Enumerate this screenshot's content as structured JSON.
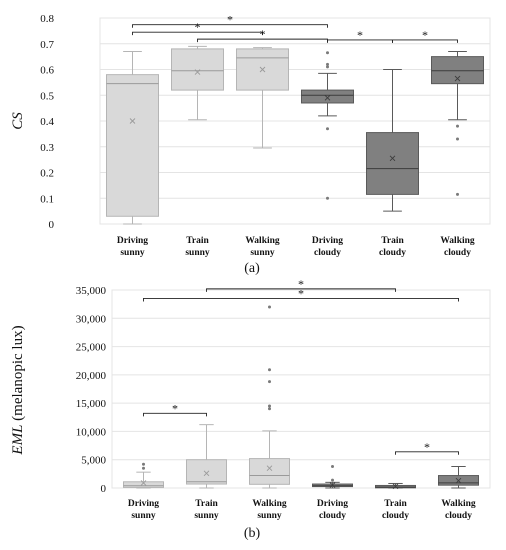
{
  "chart_data": [
    {
      "type": "box",
      "panel_label": "(a)",
      "ylabel": "CS",
      "ylim": [
        0,
        0.8
      ],
      "yticks": [
        "0",
        "0.1",
        "0.2",
        "0.3",
        "0.4",
        "0.5",
        "0.6",
        "0.7",
        "0.8"
      ],
      "grid": true,
      "categories": [
        [
          "Driving",
          "sunny"
        ],
        [
          "Train",
          "sunny"
        ],
        [
          "Walking",
          "sunny"
        ],
        [
          "Driving",
          "cloudy"
        ],
        [
          "Train",
          "cloudy"
        ],
        [
          "Walking",
          "cloudy"
        ]
      ],
      "box_colors": [
        "#d9d9d9",
        "#d9d9d9",
        "#d9d9d9",
        "#808080",
        "#808080",
        "#808080"
      ],
      "boxes": [
        {
          "whisker_low": 0.0,
          "q1": 0.03,
          "median": 0.545,
          "q3": 0.58,
          "whisker_high": 0.67,
          "mean": 0.4,
          "outliers": []
        },
        {
          "whisker_low": 0.405,
          "q1": 0.52,
          "median": 0.595,
          "q3": 0.68,
          "whisker_high": 0.69,
          "mean": 0.59,
          "outliers": []
        },
        {
          "whisker_low": 0.295,
          "q1": 0.52,
          "median": 0.645,
          "q3": 0.68,
          "whisker_high": 0.685,
          "mean": 0.6,
          "outliers": []
        },
        {
          "whisker_low": 0.42,
          "q1": 0.47,
          "median": 0.5,
          "q3": 0.52,
          "whisker_high": 0.585,
          "mean": 0.49,
          "outliers": [
            0.1,
            0.37,
            0.61,
            0.62,
            0.665
          ]
        },
        {
          "whisker_low": 0.05,
          "q1": 0.115,
          "median": 0.215,
          "q3": 0.355,
          "whisker_high": 0.6,
          "mean": 0.255,
          "outliers": []
        },
        {
          "whisker_low": 0.405,
          "q1": 0.545,
          "median": 0.595,
          "q3": 0.65,
          "whisker_high": 0.67,
          "mean": 0.565,
          "outliers": [
            0.115,
            0.33,
            0.38
          ]
        }
      ],
      "significance": [
        {
          "from": 0,
          "to": 3,
          "y": 0.774,
          "label": "*"
        },
        {
          "from": 0,
          "to": 2,
          "y": 0.745,
          "label": "*"
        },
        {
          "from": 1,
          "to": 3,
          "y": 0.718,
          "label": "*"
        },
        {
          "from": 3,
          "to": 4,
          "y": 0.715,
          "label": "*"
        },
        {
          "from": 4,
          "to": 5,
          "y": 0.715,
          "label": "*"
        }
      ]
    },
    {
      "type": "box",
      "panel_label": "(b)",
      "ylabel": "EML (melanopic lux)",
      "ylabel_italic_part": "EML",
      "ylabel_rest": " (melanopic lux)",
      "ylim": [
        0,
        35000
      ],
      "yticks": [
        "0",
        "5,000",
        "10,000",
        "15,000",
        "20,000",
        "25,000",
        "30,000",
        "35,000"
      ],
      "grid": true,
      "categories": [
        [
          "Driving",
          "sunny"
        ],
        [
          "Train",
          "sunny"
        ],
        [
          "Walking",
          "sunny"
        ],
        [
          "Driving",
          "cloudy"
        ],
        [
          "Train",
          "cloudy"
        ],
        [
          "Walking",
          "cloudy"
        ]
      ],
      "box_colors": [
        "#d9d9d9",
        "#d9d9d9",
        "#d9d9d9",
        "#808080",
        "#808080",
        "#808080"
      ],
      "boxes": [
        {
          "whisker_low": 0,
          "q1": 100,
          "median": 400,
          "q3": 1100,
          "whisker_high": 2800,
          "mean": 900,
          "outliers": [
            3500,
            4200
          ]
        },
        {
          "whisker_low": 0,
          "q1": 700,
          "median": 1100,
          "q3": 5000,
          "whisker_high": 11200,
          "mean": 2600,
          "outliers": []
        },
        {
          "whisker_low": 0,
          "q1": 650,
          "median": 2200,
          "q3": 5200,
          "whisker_high": 10100,
          "mean": 3500,
          "outliers": [
            14000,
            14500,
            18800,
            20900,
            32000
          ]
        },
        {
          "whisker_low": 0,
          "q1": 250,
          "median": 400,
          "q3": 700,
          "whisker_high": 1000,
          "mean": 550,
          "outliers": [
            1400,
            3800
          ]
        },
        {
          "whisker_low": 0,
          "q1": 30,
          "median": 150,
          "q3": 450,
          "whisker_high": 800,
          "mean": 300,
          "outliers": []
        },
        {
          "whisker_low": 0,
          "q1": 500,
          "median": 900,
          "q3": 2200,
          "whisker_high": 3800,
          "mean": 1300,
          "outliers": []
        }
      ],
      "significance": [
        {
          "from": 1,
          "to": 4,
          "y": 35200,
          "label": "*"
        },
        {
          "from": 0,
          "to": 5,
          "y": 33500,
          "label": "*"
        },
        {
          "from": 0,
          "to": 1,
          "y": 13200,
          "label": "*"
        },
        {
          "from": 4,
          "to": 5,
          "y": 6400,
          "label": "*"
        }
      ]
    }
  ]
}
